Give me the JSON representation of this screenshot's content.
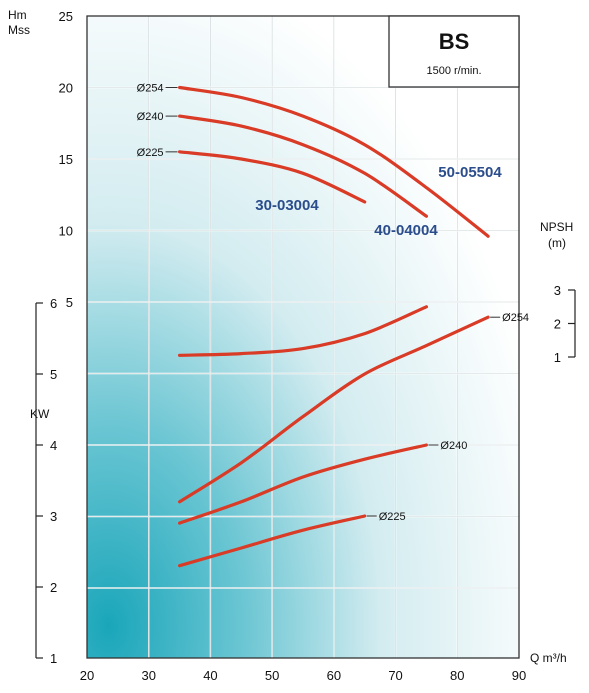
{
  "chart_data": {
    "type": "line",
    "title": "BS",
    "subtitle": "1500 r/min.",
    "x_axis": {
      "label": "Q m³/h",
      "min": 20,
      "max": 90,
      "ticks": [
        20,
        30,
        40,
        50,
        60,
        70,
        80,
        90
      ]
    },
    "head_axis": {
      "label_line1": "Hm",
      "label_line2": "Mss",
      "min": 0,
      "max": 25,
      "ticks": [
        5,
        10,
        15,
        20,
        25
      ]
    },
    "npsh_axis": {
      "label_line1": "NPSH",
      "label_line2": "(m)",
      "ticks": [
        1,
        2,
        3
      ]
    },
    "power_axis": {
      "label": "KW",
      "min": 1,
      "max": 6,
      "ticks": [
        1,
        2,
        3,
        4,
        5,
        6
      ]
    },
    "head_curves": [
      {
        "name": "Ø254",
        "model": "50-05504",
        "points": [
          [
            35,
            20
          ],
          [
            45,
            19.3
          ],
          [
            55,
            18
          ],
          [
            65,
            16
          ],
          [
            75,
            13
          ],
          [
            85,
            9.6
          ]
        ]
      },
      {
        "name": "Ø240",
        "model": "40-04004",
        "points": [
          [
            35,
            18
          ],
          [
            45,
            17.3
          ],
          [
            55,
            16
          ],
          [
            65,
            14
          ],
          [
            75,
            11
          ]
        ]
      },
      {
        "name": "Ø225",
        "model": "30-03004",
        "points": [
          [
            35,
            15.5
          ],
          [
            45,
            15
          ],
          [
            55,
            14
          ],
          [
            65,
            12
          ]
        ]
      }
    ],
    "npsh_curve": {
      "points": [
        [
          35,
          1.05
        ],
        [
          45,
          1.1
        ],
        [
          55,
          1.25
        ],
        [
          65,
          1.7
        ],
        [
          75,
          2.5
        ]
      ]
    },
    "power_curves": [
      {
        "name": "Ø254",
        "points": [
          [
            35,
            3.2
          ],
          [
            45,
            3.75
          ],
          [
            55,
            4.4
          ],
          [
            65,
            5
          ],
          [
            75,
            5.4
          ],
          [
            85,
            5.8
          ]
        ]
      },
      {
        "name": "Ø240",
        "points": [
          [
            35,
            2.9
          ],
          [
            45,
            3.2
          ],
          [
            55,
            3.55
          ],
          [
            65,
            3.8
          ],
          [
            75,
            4
          ]
        ]
      },
      {
        "name": "Ø225",
        "points": [
          [
            35,
            2.3
          ],
          [
            45,
            2.55
          ],
          [
            55,
            2.8
          ],
          [
            65,
            3
          ]
        ]
      }
    ]
  }
}
